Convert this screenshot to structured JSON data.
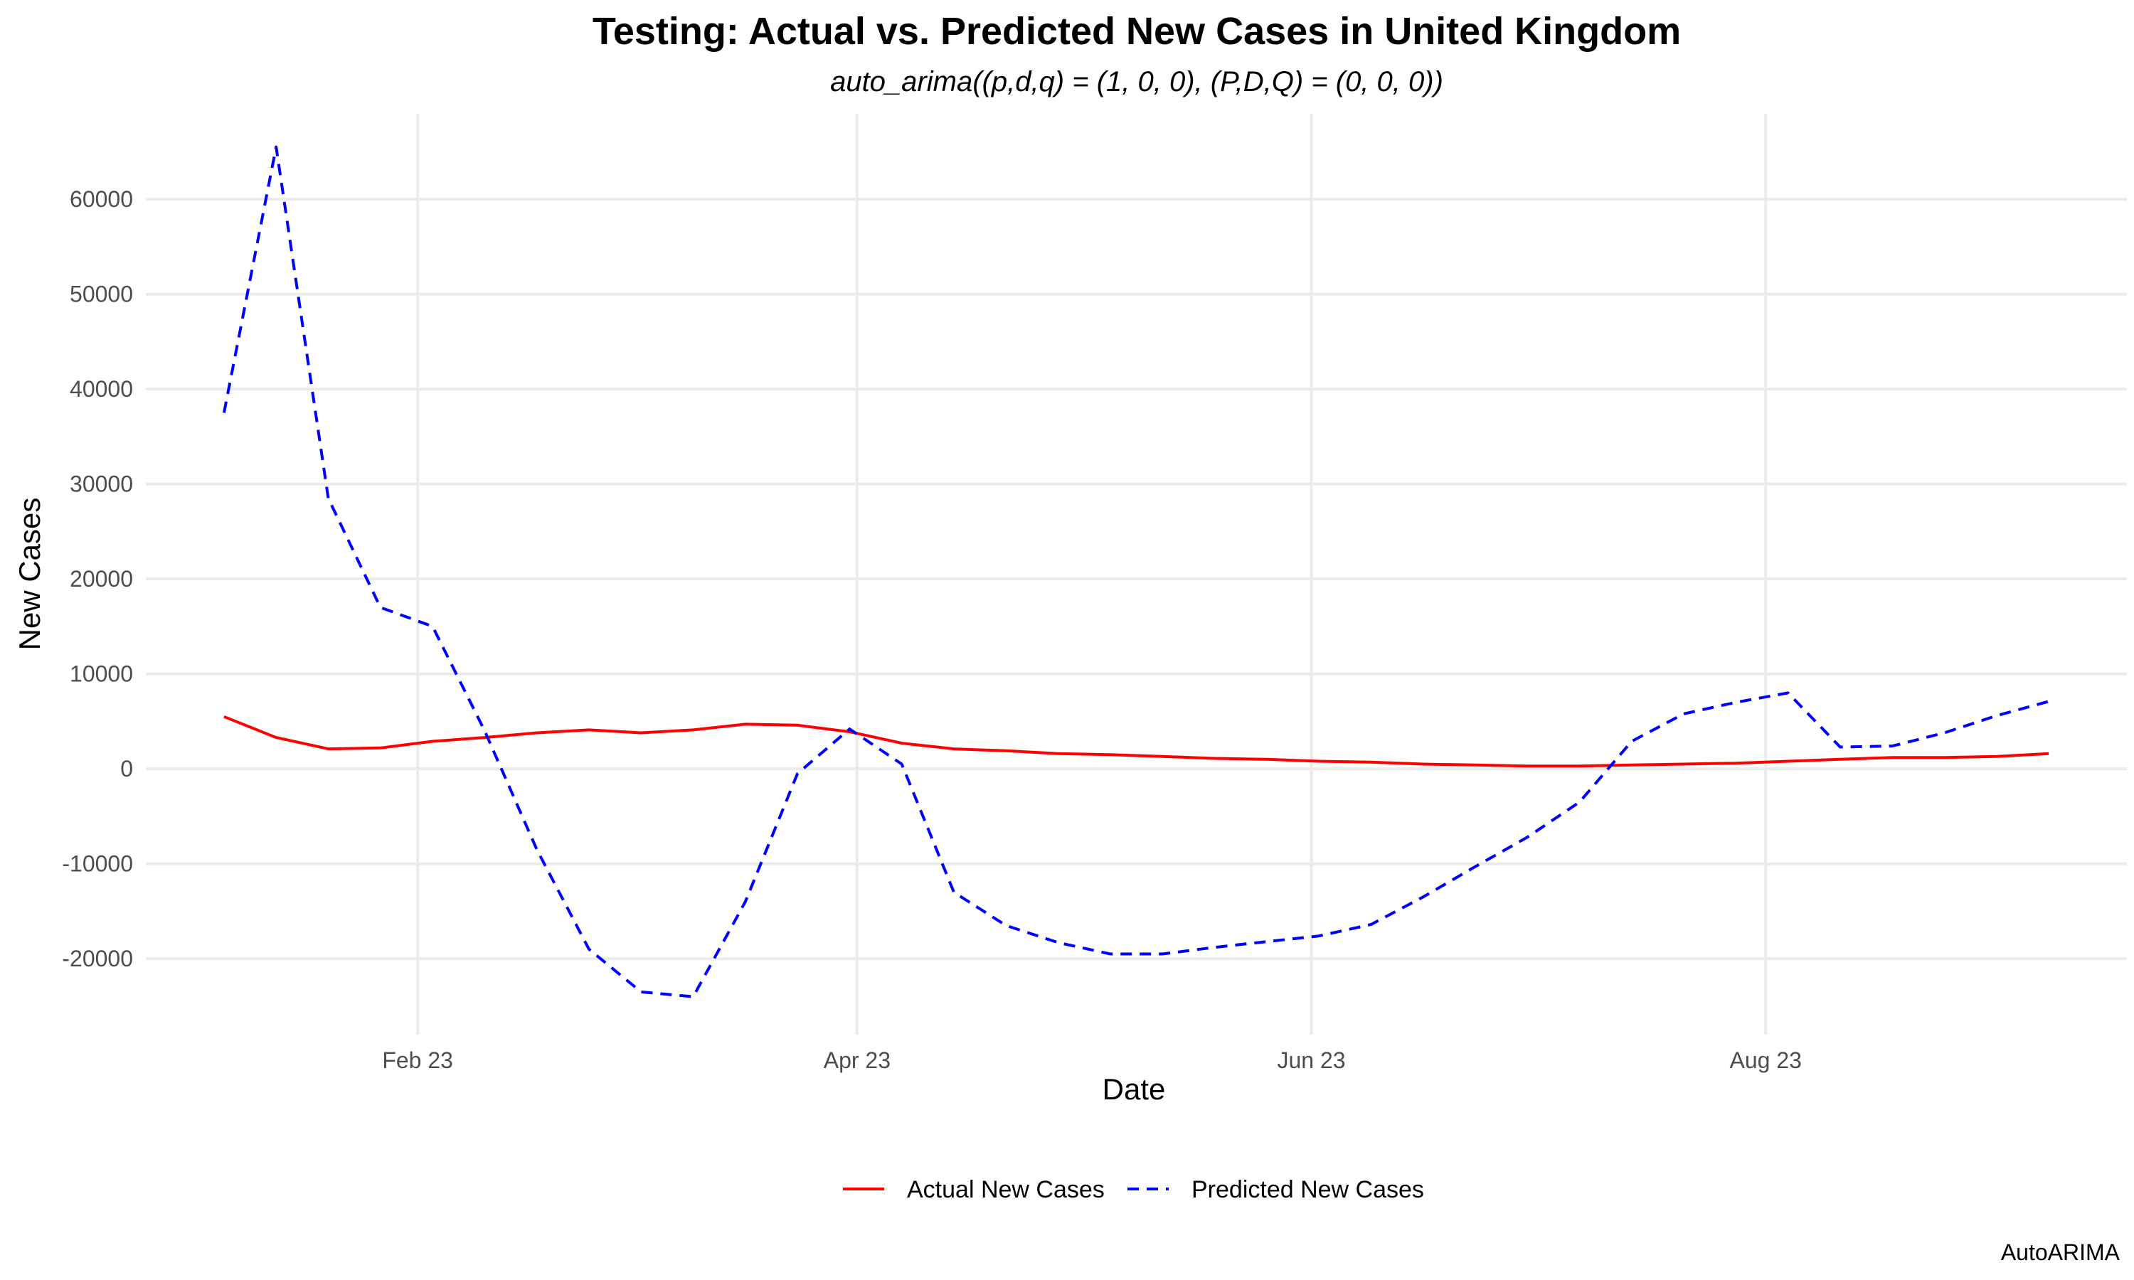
{
  "chart_data": {
    "type": "line",
    "title": "Testing: Actual vs. Predicted New Cases in United Kingdom",
    "subtitle": "auto_arima((p,d,q) = (1, 0, 0), (P,D,Q) = (0, 0, 0))",
    "xlabel": "Date",
    "ylabel": "New Cases",
    "caption": "AutoARIMA",
    "x_ticks": [
      {
        "label": "Feb 23",
        "day": 35
      },
      {
        "label": "Apr 23",
        "day": 94
      },
      {
        "label": "Jun 23",
        "day": 155
      },
      {
        "label": "Aug 23",
        "day": 216
      }
    ],
    "y_ticks": [
      -20000,
      -10000,
      0,
      10000,
      20000,
      30000,
      40000,
      50000,
      60000
    ],
    "xlim_days": [
      -1.5,
      264.5
    ],
    "ylim": [
      -28000,
      69000
    ],
    "grid": true,
    "legend_position": "bottom",
    "x": [
      9,
      16,
      23,
      30,
      37,
      44,
      51,
      58,
      65,
      72,
      79,
      86,
      93,
      100,
      107,
      114,
      121,
      128,
      135,
      142,
      149,
      156,
      163,
      170,
      177,
      184,
      191,
      198,
      205,
      212,
      219,
      226,
      233,
      240,
      247,
      254
    ],
    "series": [
      {
        "name": "Actual New Cases",
        "color": "#ff0000",
        "dash": "solid",
        "values": [
          5500,
          3300,
          2100,
          2200,
          2900,
          3300,
          3800,
          4100,
          3800,
          4100,
          4700,
          4600,
          3900,
          2700,
          2100,
          1900,
          1600,
          1500,
          1300,
          1100,
          1000,
          800,
          700,
          500,
          400,
          300,
          300,
          400,
          500,
          600,
          800,
          1000,
          1200,
          1200,
          1300,
          1600
        ]
      },
      {
        "name": "Predicted New Cases",
        "color": "#0000ff",
        "dash": "dashed",
        "values": [
          37500,
          65500,
          28500,
          17000,
          15000,
          4000,
          -8500,
          -19000,
          -23500,
          -24000,
          -14000,
          -500,
          4200,
          500,
          -13000,
          -16500,
          -18300,
          -19500,
          -19500,
          -18800,
          -18200,
          -17600,
          -16400,
          -13500,
          -10300,
          -7200,
          -3500,
          2900,
          5800,
          7000,
          8000,
          2300,
          2400,
          3800,
          5600,
          7100
        ]
      }
    ]
  }
}
